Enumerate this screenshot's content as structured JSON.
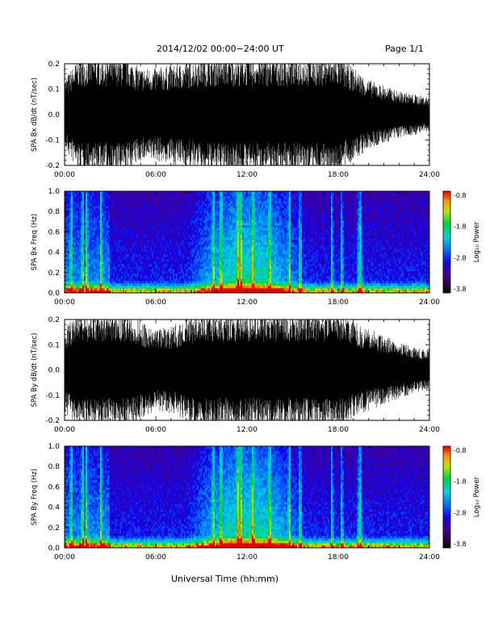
{
  "header": {
    "title": "2014/12/02  00:00−24:00 UT",
    "page": "Page 1/1"
  },
  "footer": {
    "xlabel": "Universal Time (hh:mm)"
  },
  "colors": {
    "waveform": "#000000",
    "background": "#ffffff"
  },
  "chart_data": [
    {
      "type": "line",
      "title": "",
      "ylabel": "SPA Bx dB/dt (nT/sec)",
      "xlim": [
        "00:00",
        "24:00"
      ],
      "ylim": [
        -0.2,
        0.2
      ],
      "x_ticks": [
        "00:00",
        "06:00",
        "12:00",
        "18:00",
        "24:00"
      ],
      "y_ticks": [
        "-0.2",
        "-0.1",
        "0.0",
        "0.1",
        "0.2"
      ],
      "series": [
        {
          "x_hours": [
            0,
            1,
            2,
            3,
            4,
            5,
            6,
            7,
            8,
            9,
            10,
            11,
            12,
            13,
            14,
            15,
            16,
            17,
            18,
            19,
            20,
            21,
            22,
            23,
            24
          ],
          "amplitude_nT_per_sec": [
            0.12,
            0.2,
            0.2,
            0.2,
            0.2,
            0.16,
            0.16,
            0.17,
            0.18,
            0.2,
            0.2,
            0.2,
            0.2,
            0.2,
            0.2,
            0.2,
            0.2,
            0.2,
            0.2,
            0.16,
            0.12,
            0.1,
            0.08,
            0.07,
            0.06
          ]
        }
      ]
    },
    {
      "type": "heatmap",
      "title": "",
      "ylabel": "SPA Bx Freq (Hz)",
      "xlim": [
        "00:00",
        "24:00"
      ],
      "ylim": [
        0.0,
        1.0
      ],
      "x_ticks": [
        "00:00",
        "06:00",
        "12:00",
        "18:00",
        "24:00"
      ],
      "y_ticks": [
        "0.0",
        "0.2",
        "0.4",
        "0.6",
        "0.8",
        "1.0"
      ],
      "colorbar": {
        "label": "Log₁₀ Power",
        "ticks": [
          "-0.8",
          "-1.8",
          "-2.8",
          "-3.8"
        ],
        "range": [
          -3.8,
          -0.8
        ]
      },
      "vertical_bursts_hours": [
        0.45,
        1.2,
        1.45,
        2.4,
        9.8,
        10.3,
        11.4,
        11.6,
        12.4,
        13.5,
        14.8,
        15.5,
        17.6,
        18.25,
        19.35,
        19.5
      ],
      "hot_band_hours": [
        [
          8,
          16
        ]
      ]
    },
    {
      "type": "line",
      "title": "",
      "ylabel": "SPA By dB/dt (nT/sec)",
      "xlim": [
        "00:00",
        "24:00"
      ],
      "ylim": [
        -0.2,
        0.2
      ],
      "x_ticks": [
        "00:00",
        "06:00",
        "12:00",
        "18:00",
        "24:00"
      ],
      "y_ticks": [
        "-0.2",
        "-0.1",
        "0.0",
        "0.1",
        "0.2"
      ],
      "series": [
        {
          "x_hours": [
            0,
            1,
            2,
            3,
            4,
            5,
            6,
            7,
            8,
            9,
            10,
            11,
            12,
            13,
            14,
            15,
            16,
            17,
            18,
            19,
            20,
            21,
            22,
            23,
            24
          ],
          "amplitude_nT_per_sec": [
            0.15,
            0.2,
            0.2,
            0.2,
            0.2,
            0.17,
            0.14,
            0.15,
            0.18,
            0.2,
            0.2,
            0.2,
            0.2,
            0.2,
            0.2,
            0.2,
            0.2,
            0.2,
            0.2,
            0.17,
            0.14,
            0.12,
            0.1,
            0.08,
            0.07
          ]
        }
      ]
    },
    {
      "type": "heatmap",
      "title": "",
      "ylabel": "SPA By Freq (Hz)",
      "xlim": [
        "00:00",
        "24:00"
      ],
      "ylim": [
        0.0,
        1.0
      ],
      "x_ticks": [
        "00:00",
        "06:00",
        "12:00",
        "18:00",
        "24:00"
      ],
      "y_ticks": [
        "0.0",
        "0.2",
        "0.4",
        "0.6",
        "0.8",
        "1.0"
      ],
      "colorbar": {
        "label": "Log₁₀ Power",
        "ticks": [
          "-0.8",
          "-1.8",
          "-2.8",
          "-3.8"
        ],
        "range": [
          -3.8,
          -0.8
        ]
      },
      "vertical_bursts_hours": [
        0.45,
        1.2,
        1.45,
        2.4,
        9.8,
        10.3,
        11.4,
        11.6,
        12.4,
        13.5,
        14.8,
        15.5,
        17.6,
        18.25,
        19.35,
        19.5
      ],
      "hot_band_hours": [
        [
          8,
          16
        ]
      ]
    }
  ]
}
